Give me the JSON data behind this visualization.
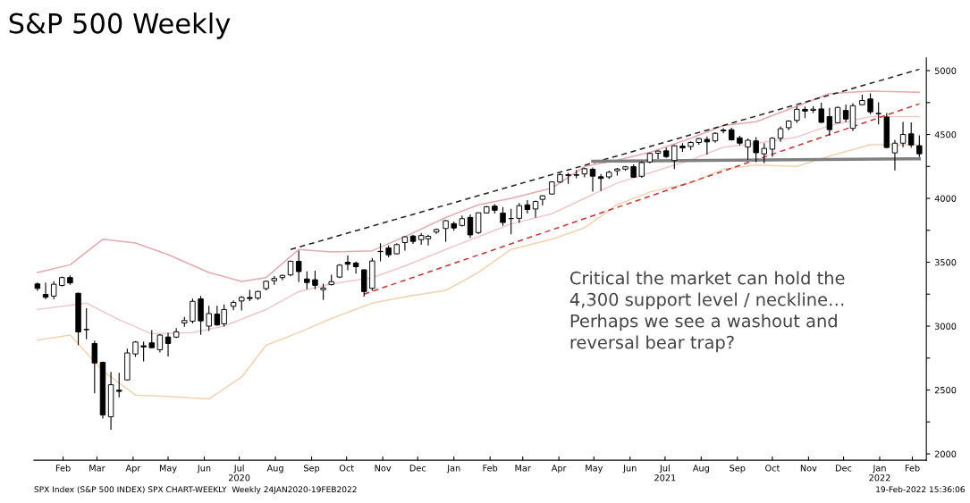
{
  "chart_data": {
    "type": "candlestick",
    "title": "S&P 500 Weekly",
    "color": "#000000",
    "x": [
      "2020-01-24",
      "2020-01-31",
      "2020-02-07",
      "2020-02-14",
      "2020-02-21",
      "2020-02-28",
      "2020-03-06",
      "2020-03-13",
      "2020-03-20",
      "2020-03-27",
      "2020-04-03",
      "2020-04-10",
      "2020-04-17",
      "2020-04-24",
      "2020-05-01",
      "2020-05-08",
      "2020-05-15",
      "2020-05-22",
      "2020-05-29",
      "2020-06-05",
      "2020-06-12",
      "2020-06-19",
      "2020-06-26",
      "2020-07-02",
      "2020-07-10",
      "2020-07-17",
      "2020-07-24",
      "2020-07-31",
      "2020-08-07",
      "2020-08-14",
      "2020-08-21",
      "2020-08-28",
      "2020-09-04",
      "2020-09-11",
      "2020-09-18",
      "2020-09-25",
      "2020-10-02",
      "2020-10-09",
      "2020-10-16",
      "2020-10-23",
      "2020-10-30",
      "2020-11-06",
      "2020-11-13",
      "2020-11-20",
      "2020-11-27",
      "2020-12-04",
      "2020-12-11",
      "2020-12-18",
      "2020-12-24",
      "2020-12-31",
      "2021-01-08",
      "2021-01-15",
      "2021-01-22",
      "2021-01-29",
      "2021-02-05",
      "2021-02-12",
      "2021-02-19",
      "2021-02-26",
      "2021-03-05",
      "2021-03-12",
      "2021-03-19",
      "2021-03-26",
      "2021-04-01",
      "2021-04-09",
      "2021-04-16",
      "2021-04-23",
      "2021-04-30",
      "2021-05-07",
      "2021-05-14",
      "2021-05-21",
      "2021-05-28",
      "2021-06-04",
      "2021-06-11",
      "2021-06-18",
      "2021-06-25",
      "2021-07-02",
      "2021-07-09",
      "2021-07-16",
      "2021-07-23",
      "2021-07-30",
      "2021-08-06",
      "2021-08-13",
      "2021-08-20",
      "2021-08-27",
      "2021-09-03",
      "2021-09-10",
      "2021-09-17",
      "2021-09-24",
      "2021-10-01",
      "2021-10-08",
      "2021-10-15",
      "2021-10-22",
      "2021-10-29",
      "2021-11-05",
      "2021-11-12",
      "2021-11-19",
      "2021-11-26",
      "2021-12-03",
      "2021-12-10",
      "2021-12-17",
      "2021-12-23",
      "2021-12-31",
      "2022-01-07",
      "2022-01-14",
      "2022-01-21",
      "2022-01-28",
      "2022-02-04",
      "2022-02-11",
      "2022-02-18"
    ],
    "ohlc": [
      [
        3330,
        3337,
        3281,
        3295
      ],
      [
        3248,
        3337,
        3214,
        3226
      ],
      [
        3235,
        3347,
        3214,
        3328
      ],
      [
        3318,
        3385,
        3316,
        3380
      ],
      [
        3380,
        3393,
        3328,
        3338
      ],
      [
        3257,
        3259,
        2856,
        2954
      ],
      [
        2974,
        3136,
        2901,
        2972
      ],
      [
        2864,
        2883,
        2478,
        2711
      ],
      [
        2716,
        2718,
        2280,
        2305
      ],
      [
        2290,
        2637,
        2192,
        2541
      ],
      [
        2498,
        2631,
        2447,
        2489
      ],
      [
        2579,
        2819,
        2579,
        2790
      ],
      [
        2782,
        2879,
        2763,
        2875
      ],
      [
        2846,
        2875,
        2727,
        2837
      ],
      [
        2869,
        2965,
        2830,
        2831
      ],
      [
        2815,
        2933,
        2798,
        2930
      ],
      [
        2915,
        2944,
        2766,
        2864
      ],
      [
        2914,
        2980,
        2909,
        2955
      ],
      [
        3025,
        3068,
        2999,
        3044
      ],
      [
        3038,
        3211,
        3025,
        3194
      ],
      [
        3213,
        3233,
        2936,
        3041
      ],
      [
        3000,
        3155,
        2965,
        3098
      ],
      [
        3094,
        3155,
        3008,
        3009
      ],
      [
        3018,
        3165,
        3000,
        3130
      ],
      [
        3155,
        3198,
        3128,
        3185
      ],
      [
        3197,
        3233,
        3127,
        3225
      ],
      [
        3224,
        3280,
        3200,
        3216
      ],
      [
        3219,
        3272,
        3209,
        3271
      ],
      [
        3294,
        3352,
        3284,
        3351
      ],
      [
        3356,
        3387,
        3327,
        3373
      ],
      [
        3380,
        3399,
        3363,
        3397
      ],
      [
        3401,
        3509,
        3394,
        3508
      ],
      [
        3507,
        3588,
        3349,
        3427
      ],
      [
        3369,
        3425,
        3293,
        3341
      ],
      [
        3363,
        3429,
        3292,
        3319
      ],
      [
        3285,
        3329,
        3209,
        3298
      ],
      [
        3326,
        3398,
        3323,
        3348
      ],
      [
        3384,
        3482,
        3380,
        3477
      ],
      [
        3500,
        3549,
        3441,
        3484
      ],
      [
        3494,
        3502,
        3415,
        3465
      ],
      [
        3441,
        3441,
        3234,
        3270
      ],
      [
        3296,
        3529,
        3280,
        3510
      ],
      [
        3583,
        3645,
        3511,
        3585
      ],
      [
        3612,
        3628,
        3543,
        3558
      ],
      [
        3566,
        3644,
        3566,
        3638
      ],
      [
        3654,
        3699,
        3595,
        3699
      ],
      [
        3705,
        3712,
        3647,
        3663
      ],
      [
        3677,
        3726,
        3640,
        3709
      ],
      [
        3684,
        3711,
        3636,
        3703
      ],
      [
        3736,
        3760,
        3726,
        3756
      ],
      [
        3764,
        3826,
        3663,
        3825
      ],
      [
        3802,
        3815,
        3750,
        3768
      ],
      [
        3788,
        3861,
        3784,
        3841
      ],
      [
        3851,
        3870,
        3694,
        3714
      ],
      [
        3732,
        3887,
        3725,
        3887
      ],
      [
        3886,
        3937,
        3885,
        3934
      ],
      [
        3939,
        3950,
        3885,
        3907
      ],
      [
        3885,
        3928,
        3789,
        3811
      ],
      [
        3842,
        3915,
        3723,
        3842
      ],
      [
        3844,
        3960,
        3812,
        3943
      ],
      [
        3949,
        3983,
        3886,
        3913
      ],
      [
        3917,
        3978,
        3853,
        3975
      ],
      [
        3992,
        4020,
        3948,
        4020
      ],
      [
        4034,
        4129,
        4034,
        4129
      ],
      [
        4128,
        4192,
        4125,
        4185
      ],
      [
        4185,
        4195,
        4118,
        4180
      ],
      [
        4185,
        4218,
        4162,
        4181
      ],
      [
        4191,
        4238,
        4169,
        4232
      ],
      [
        4228,
        4237,
        4057,
        4174
      ],
      [
        4169,
        4187,
        4062,
        4156
      ],
      [
        4168,
        4213,
        4156,
        4204
      ],
      [
        4216,
        4234,
        4183,
        4230
      ],
      [
        4229,
        4249,
        4220,
        4247
      ],
      [
        4248,
        4262,
        4165,
        4166
      ],
      [
        4173,
        4287,
        4165,
        4280
      ],
      [
        4285,
        4355,
        4278,
        4352
      ],
      [
        4353,
        4372,
        4311,
        4370
      ],
      [
        4372,
        4394,
        4321,
        4327
      ],
      [
        4296,
        4415,
        4233,
        4412
      ],
      [
        4409,
        4429,
        4367,
        4395
      ],
      [
        4406,
        4442,
        4383,
        4437
      ],
      [
        4437,
        4468,
        4424,
        4468
      ],
      [
        4462,
        4480,
        4347,
        4442
      ],
      [
        4450,
        4513,
        4440,
        4509
      ],
      [
        4528,
        4545,
        4513,
        4535
      ],
      [
        4537,
        4549,
        4457,
        4458
      ],
      [
        4474,
        4486,
        4419,
        4432
      ],
      [
        4402,
        4465,
        4305,
        4455
      ],
      [
        4450,
        4476,
        4288,
        4357
      ],
      [
        4348,
        4429,
        4278,
        4391
      ],
      [
        4385,
        4475,
        4329,
        4471
      ],
      [
        4471,
        4559,
        4447,
        4545
      ],
      [
        4553,
        4608,
        4537,
        4605
      ],
      [
        4610,
        4718,
        4595,
        4697
      ],
      [
        4697,
        4715,
        4631,
        4683
      ],
      [
        4689,
        4718,
        4672,
        4698
      ],
      [
        4700,
        4744,
        4594,
        4595
      ],
      [
        4640,
        4705,
        4495,
        4538
      ],
      [
        4592,
        4713,
        4592,
        4712
      ],
      [
        4688,
        4731,
        4600,
        4621
      ],
      [
        4548,
        4740,
        4531,
        4726
      ],
      [
        4733,
        4808,
        4733,
        4766
      ],
      [
        4778,
        4818,
        4662,
        4677
      ],
      [
        4665,
        4749,
        4582,
        4663
      ],
      [
        4637,
        4665,
        4395,
        4398
      ],
      [
        4356,
        4453,
        4222,
        4432
      ],
      [
        4432,
        4595,
        4405,
        4500
      ],
      [
        4505,
        4590,
        4401,
        4418
      ],
      [
        4412,
        4489,
        4327,
        4349
      ]
    ],
    "series": [
      {
        "type": "line",
        "color": "#e6a9ad",
        "x": [
          "2020-01-24",
          "2020-02-21",
          "2020-03-20",
          "2020-04-17",
          "2020-05-15",
          "2020-06-19",
          "2020-07-17",
          "2020-08-07",
          "2020-09-04",
          "2020-10-02",
          "2020-11-06",
          "2020-12-04",
          "2021-01-08",
          "2021-02-05",
          "2021-03-05",
          "2021-04-09",
          "2021-05-07",
          "2021-06-04",
          "2021-07-02",
          "2021-08-06",
          "2021-09-03",
          "2021-10-01",
          "2021-11-05",
          "2021-12-03",
          "2022-01-07",
          "2022-02-18"
        ],
        "values": [
          3420,
          3480,
          3680,
          3650,
          3560,
          3420,
          3350,
          3380,
          3600,
          3580,
          3590,
          3700,
          3850,
          3950,
          4000,
          4080,
          4250,
          4300,
          4360,
          4470,
          4570,
          4600,
          4720,
          4820,
          4840,
          4830
        ]
      },
      {
        "type": "line",
        "color": "#f0c8c8",
        "x": [
          "2020-01-24",
          "2020-03-06",
          "2020-04-03",
          "2020-05-01",
          "2020-06-05",
          "2020-07-02",
          "2020-08-07",
          "2020-09-04",
          "2020-10-02",
          "2020-11-06",
          "2020-12-04",
          "2021-01-08",
          "2021-02-05",
          "2021-03-05",
          "2021-04-09",
          "2021-05-07",
          "2021-06-04",
          "2021-07-02",
          "2021-08-06",
          "2021-09-03",
          "2021-10-01",
          "2021-11-05",
          "2021-12-03",
          "2022-01-07",
          "2022-02-18"
        ],
        "values": [
          3130,
          3180,
          3050,
          2940,
          2950,
          3000,
          3130,
          3270,
          3330,
          3380,
          3470,
          3600,
          3700,
          3800,
          3880,
          4000,
          4120,
          4200,
          4300,
          4400,
          4430,
          4480,
          4570,
          4640,
          4640
        ]
      },
      {
        "type": "line",
        "color": "#f2d3b0",
        "x": [
          "2020-01-24",
          "2020-02-21",
          "2020-03-20",
          "2020-04-17",
          "2020-05-15",
          "2020-06-19",
          "2020-07-17",
          "2020-08-07",
          "2020-09-04",
          "2020-10-02",
          "2020-11-06",
          "2020-12-04",
          "2021-01-08",
          "2021-02-05",
          "2021-03-05",
          "2021-04-09",
          "2021-05-07",
          "2021-06-04",
          "2021-07-02",
          "2021-08-06",
          "2021-09-03",
          "2021-10-01",
          "2021-11-05",
          "2021-12-03",
          "2022-01-07",
          "2022-02-18"
        ],
        "values": [
          2890,
          2930,
          2650,
          2460,
          2450,
          2430,
          2600,
          2850,
          2950,
          3060,
          3180,
          3230,
          3280,
          3420,
          3600,
          3680,
          3770,
          3950,
          4050,
          4120,
          4230,
          4260,
          4250,
          4330,
          4420,
          4420
        ]
      },
      {
        "type": "line",
        "color": "#222222",
        "line_style": "dashed",
        "x": [
          "2020-08-28",
          "2022-02-18"
        ],
        "values": [
          3600,
          5010
        ]
      },
      {
        "type": "line",
        "color": "#cc3333",
        "line_style": "dashed",
        "x": [
          "2020-10-30",
          "2022-02-18"
        ],
        "values": [
          3250,
          4740
        ]
      },
      {
        "type": "line",
        "color": "#808080",
        "x": [
          "2021-05-14",
          "2022-02-18"
        ],
        "values": [
          4290,
          4310
        ]
      }
    ],
    "xlim": [
      "2020-01-21",
      "2022-02-24"
    ],
    "xticks": [
      {
        "value": "2020-02-15",
        "label": "Feb"
      },
      {
        "value": "2020-03-15",
        "label": "Mar"
      },
      {
        "value": "2020-04-15",
        "label": "Apr"
      },
      {
        "value": "2020-05-15",
        "label": "May"
      },
      {
        "value": "2020-06-15",
        "label": "Jun"
      },
      {
        "value": "2020-07-15",
        "label": "Jul\n2020"
      },
      {
        "value": "2020-08-15",
        "label": "Aug"
      },
      {
        "value": "2020-09-15",
        "label": "Sep"
      },
      {
        "value": "2020-10-15",
        "label": "Oct"
      },
      {
        "value": "2020-11-15",
        "label": "Nov"
      },
      {
        "value": "2020-12-15",
        "label": "Dec"
      },
      {
        "value": "2021-01-15",
        "label": "Jan"
      },
      {
        "value": "2021-02-15",
        "label": "Feb"
      },
      {
        "value": "2021-03-15",
        "label": "Mar"
      },
      {
        "value": "2021-04-15",
        "label": "Apr"
      },
      {
        "value": "2021-05-15",
        "label": "May"
      },
      {
        "value": "2021-06-15",
        "label": "Jun"
      },
      {
        "value": "2021-07-15",
        "label": "Jul\n2021"
      },
      {
        "value": "2021-08-15",
        "label": "Aug"
      },
      {
        "value": "2021-09-15",
        "label": "Sep"
      },
      {
        "value": "2021-10-15",
        "label": "Oct"
      },
      {
        "value": "2021-11-15",
        "label": "Nov"
      },
      {
        "value": "2021-12-15",
        "label": "Dec"
      },
      {
        "value": "2022-01-15",
        "label": "Jan\n2022"
      },
      {
        "value": "2022-02-12",
        "label": "Feb"
      }
    ],
    "ylim": [
      1950,
      5100
    ],
    "yticks": [
      2000,
      {
        "value": 2250,
        "label": null
      },
      2500,
      {
        "value": 2750,
        "label": null
      },
      3000,
      {
        "value": 3250,
        "label": null
      },
      3500,
      {
        "value": 3750,
        "label": null
      },
      4000,
      {
        "value": 4250,
        "label": null
      },
      4500,
      {
        "value": 4750,
        "label": null
      },
      5000
    ],
    "grid": false,
    "annotations": [
      "Critical the market can hold the\n4,300 support level / neckline…\nPerhaps we see a washout and\nreversal bear trap?",
      "SPX Index (S&P 500 INDEX) SPX CHART-WEEKLY  Weekly 24JAN2020-19FEB2022",
      "19-Feb-2022 15:36:06"
    ]
  }
}
